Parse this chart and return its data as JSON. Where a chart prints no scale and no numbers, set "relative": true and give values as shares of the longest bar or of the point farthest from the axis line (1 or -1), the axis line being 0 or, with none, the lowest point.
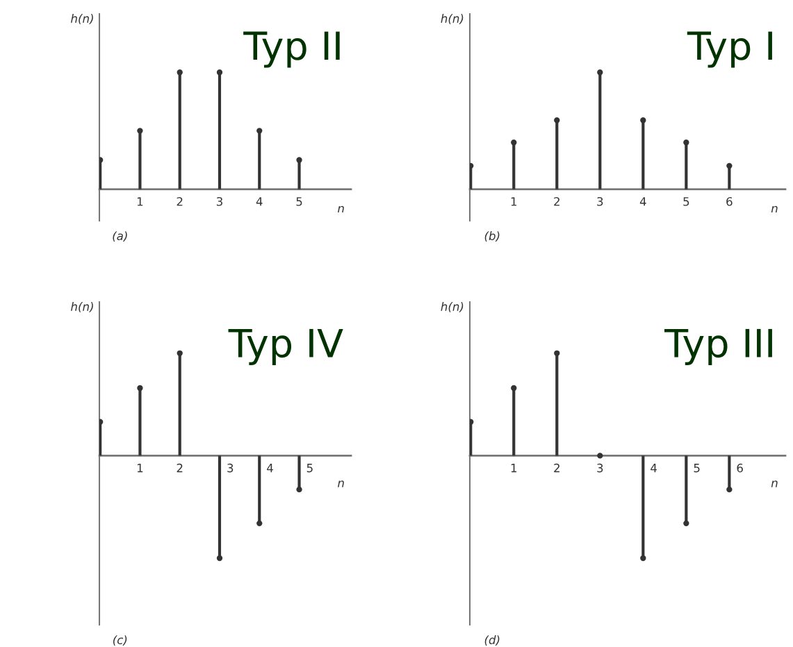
{
  "chart_data": [
    {
      "type": "lollipop",
      "title": "Typ II",
      "xlabel": "n",
      "ylabel": "h(n)",
      "annotations": [
        "(a)"
      ],
      "relative": true,
      "marker": "circle",
      "color": "#333333",
      "categories": [
        null,
        "1",
        "2",
        "3",
        "4",
        "5"
      ],
      "values": [
        0.25,
        0.5,
        1,
        1,
        0.5,
        0.25
      ]
    },
    {
      "type": "lollipop",
      "title": "Typ I",
      "xlabel": "n",
      "ylabel": "h(n)",
      "annotations": [
        "(b)"
      ],
      "relative": true,
      "marker": "circle",
      "color": "#333333",
      "categories": [
        null,
        "1",
        "2",
        "3",
        "4",
        "5",
        "6"
      ],
      "values": [
        0.2,
        0.4,
        0.59,
        1,
        0.59,
        0.4,
        0.2
      ]
    },
    {
      "type": "lollipop",
      "title": "Typ IV",
      "xlabel": "n",
      "ylabel": "h(n)",
      "annotations": [
        "(c)"
      ],
      "relative": true,
      "marker": "circle",
      "color": "#333333",
      "categories": [
        null,
        "1",
        "2",
        "3",
        "4",
        "5"
      ],
      "values": [
        0.33,
        0.66,
        1,
        -1,
        -0.66,
        -0.33
      ]
    },
    {
      "type": "lollipop",
      "title": "Typ III",
      "xlabel": "n",
      "ylabel": "h(n)",
      "annotations": [
        "(d)"
      ],
      "relative": true,
      "marker": "circle",
      "color": "#333333",
      "categories": [
        null,
        "1",
        "2",
        "3",
        "4",
        "5",
        "6"
      ],
      "values": [
        0.33,
        0.66,
        1,
        0,
        -1,
        -0.66,
        -0.33
      ]
    }
  ]
}
